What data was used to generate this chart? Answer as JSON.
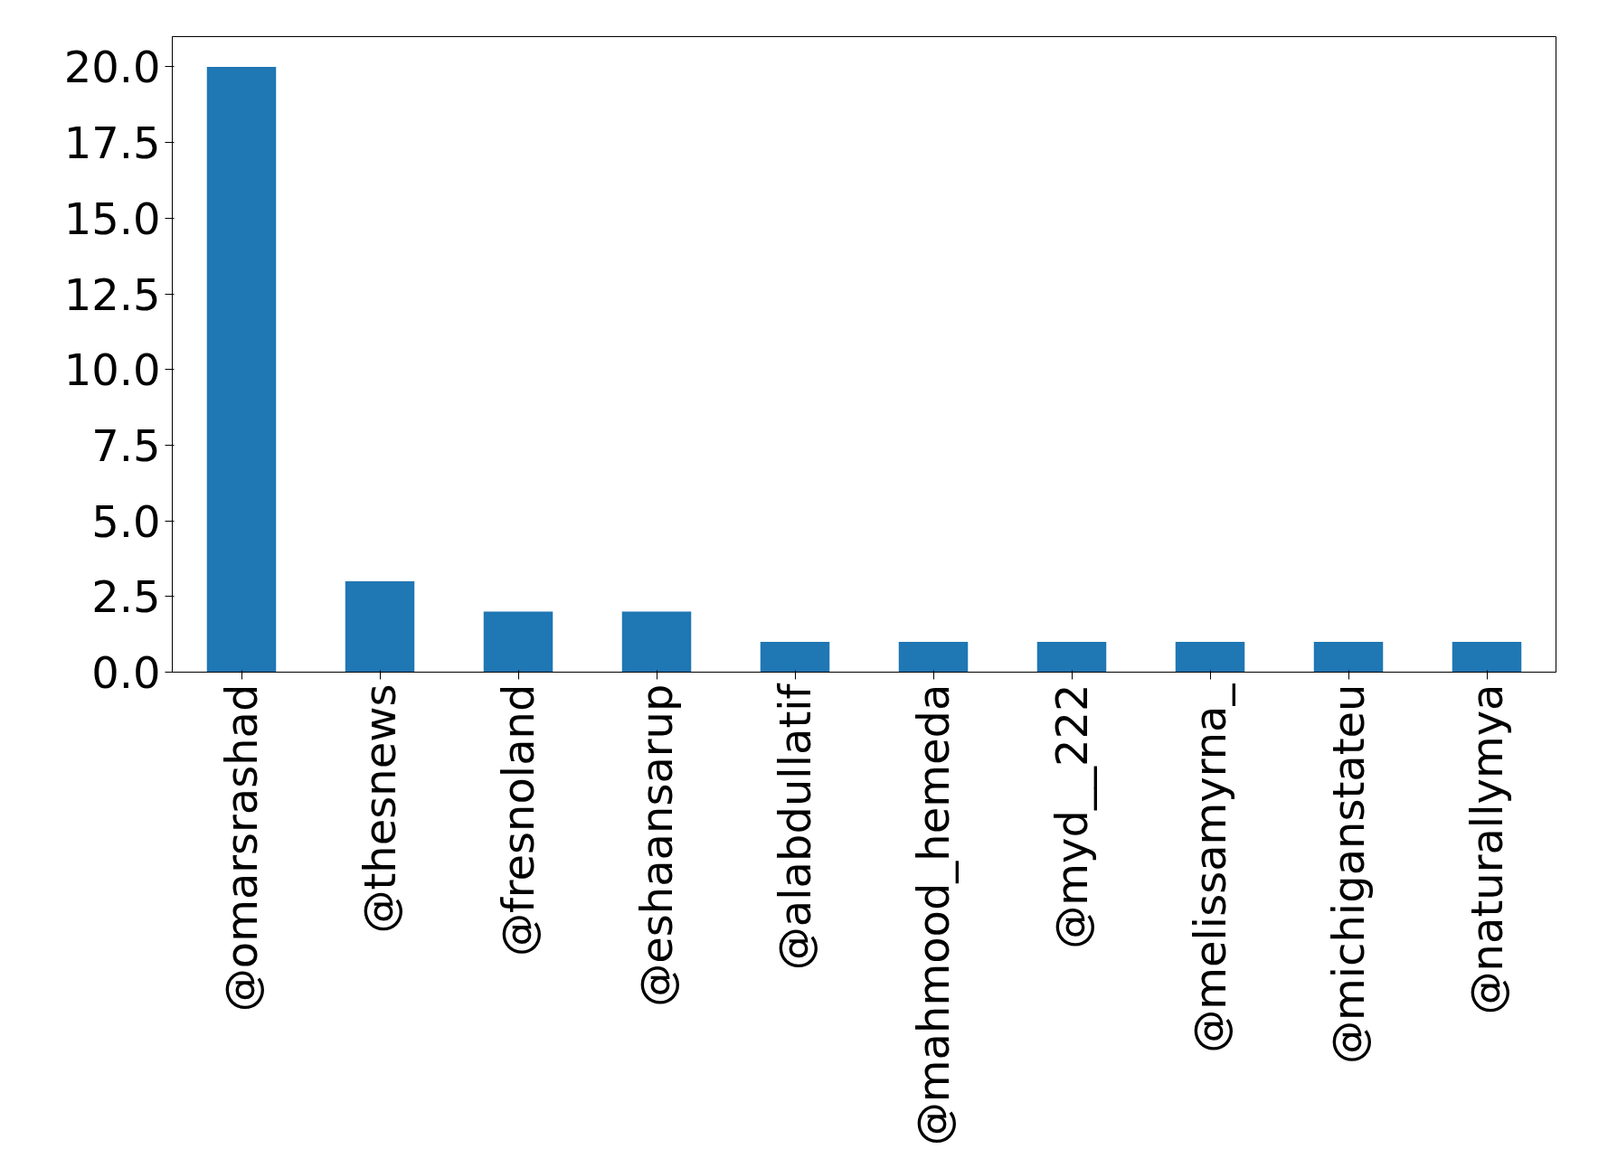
{
  "chart_data": {
    "type": "bar",
    "categories": [
      "@omarsrashad",
      "@thesnews",
      "@fresnoland",
      "@eshaansarup",
      "@alabdullatif",
      "@mahmood_hemeda",
      "@myd__222",
      "@melissamyrna_",
      "@michiganstateu",
      "@naturallymya"
    ],
    "values": [
      20,
      3,
      2,
      2,
      1,
      1,
      1,
      1,
      1,
      1
    ],
    "color": "#1f77b4",
    "ylim": [
      0,
      21
    ],
    "yticks": [
      {
        "value": 0,
        "label": "0.0"
      },
      {
        "value": 2.5,
        "label": "2.5"
      },
      {
        "value": 5,
        "label": "5.0"
      },
      {
        "value": 7.5,
        "label": "7.5"
      },
      {
        "value": 10,
        "label": "10.0"
      },
      {
        "value": 12.5,
        "label": "12.5"
      },
      {
        "value": 15,
        "label": "15.0"
      },
      {
        "value": 17.5,
        "label": "17.5"
      },
      {
        "value": 20,
        "label": "20.0"
      }
    ],
    "grid": false
  }
}
